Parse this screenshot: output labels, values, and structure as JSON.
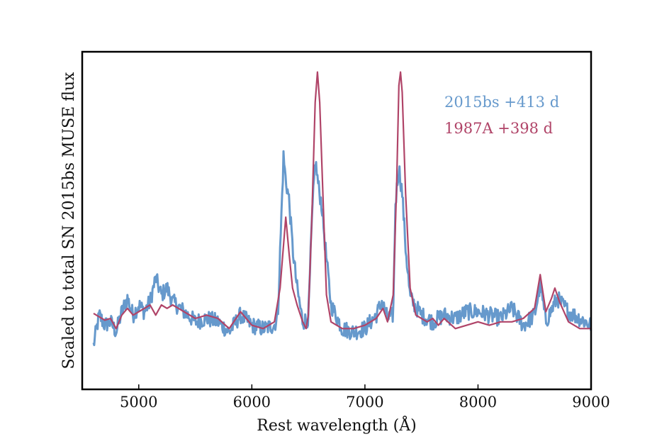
{
  "chart_data": {
    "type": "line",
    "xlabel": "Rest wavelength (Å)",
    "ylabel": "Scaled to total SN 2015bs MUSE flux",
    "xlim": [
      4500,
      9000
    ],
    "ylim": [
      0,
      1.0
    ],
    "x_ticks": [
      5000,
      6000,
      7000,
      8000,
      9000
    ],
    "y_ticks_shown": false,
    "grid": false,
    "legend": "top-right",
    "series": [
      {
        "name": "2015bs +413 d",
        "color": "#6699cc",
        "points": [
          [
            4600,
            0.13
          ],
          [
            4650,
            0.22
          ],
          [
            4700,
            0.19
          ],
          [
            4750,
            0.2
          ],
          [
            4800,
            0.17
          ],
          [
            4850,
            0.23
          ],
          [
            4900,
            0.27
          ],
          [
            4950,
            0.22
          ],
          [
            5000,
            0.25
          ],
          [
            5050,
            0.23
          ],
          [
            5100,
            0.26
          ],
          [
            5150,
            0.33
          ],
          [
            5200,
            0.28
          ],
          [
            5250,
            0.3
          ],
          [
            5300,
            0.26
          ],
          [
            5400,
            0.23
          ],
          [
            5500,
            0.2
          ],
          [
            5600,
            0.21
          ],
          [
            5700,
            0.2
          ],
          [
            5800,
            0.17
          ],
          [
            5900,
            0.22
          ],
          [
            6000,
            0.19
          ],
          [
            6100,
            0.18
          ],
          [
            6200,
            0.19
          ],
          [
            6230,
            0.22
          ],
          [
            6260,
            0.5
          ],
          [
            6280,
            0.69
          ],
          [
            6300,
            0.62
          ],
          [
            6330,
            0.56
          ],
          [
            6360,
            0.42
          ],
          [
            6400,
            0.3
          ],
          [
            6450,
            0.2
          ],
          [
            6500,
            0.21
          ],
          [
            6530,
            0.49
          ],
          [
            6560,
            0.68
          ],
          [
            6590,
            0.6
          ],
          [
            6620,
            0.54
          ],
          [
            6650,
            0.42
          ],
          [
            6700,
            0.25
          ],
          [
            6800,
            0.18
          ],
          [
            6900,
            0.17
          ],
          [
            7000,
            0.18
          ],
          [
            7100,
            0.22
          ],
          [
            7150,
            0.26
          ],
          [
            7200,
            0.21
          ],
          [
            7250,
            0.22
          ],
          [
            7270,
            0.55
          ],
          [
            7300,
            0.66
          ],
          [
            7330,
            0.58
          ],
          [
            7360,
            0.42
          ],
          [
            7400,
            0.27
          ],
          [
            7500,
            0.22
          ],
          [
            7600,
            0.2
          ],
          [
            7700,
            0.22
          ],
          [
            7800,
            0.21
          ],
          [
            7900,
            0.23
          ],
          [
            8000,
            0.23
          ],
          [
            8100,
            0.22
          ],
          [
            8200,
            0.21
          ],
          [
            8300,
            0.24
          ],
          [
            8400,
            0.19
          ],
          [
            8500,
            0.22
          ],
          [
            8550,
            0.31
          ],
          [
            8600,
            0.2
          ],
          [
            8700,
            0.27
          ],
          [
            8800,
            0.23
          ],
          [
            8900,
            0.21
          ],
          [
            9000,
            0.19
          ]
        ],
        "noise": 0.025
      },
      {
        "name": "1987A +398 d",
        "color": "#b04468",
        "points": [
          [
            4600,
            0.225
          ],
          [
            4650,
            0.215
          ],
          [
            4700,
            0.205
          ],
          [
            4750,
            0.21
          ],
          [
            4800,
            0.18
          ],
          [
            4850,
            0.22
          ],
          [
            4900,
            0.24
          ],
          [
            4950,
            0.22
          ],
          [
            5000,
            0.23
          ],
          [
            5050,
            0.24
          ],
          [
            5100,
            0.25
          ],
          [
            5150,
            0.22
          ],
          [
            5200,
            0.25
          ],
          [
            5250,
            0.24
          ],
          [
            5300,
            0.25
          ],
          [
            5400,
            0.23
          ],
          [
            5500,
            0.21
          ],
          [
            5600,
            0.22
          ],
          [
            5700,
            0.21
          ],
          [
            5800,
            0.18
          ],
          [
            5900,
            0.23
          ],
          [
            6000,
            0.19
          ],
          [
            6100,
            0.18
          ],
          [
            6200,
            0.2
          ],
          [
            6250,
            0.3
          ],
          [
            6300,
            0.51
          ],
          [
            6330,
            0.4
          ],
          [
            6360,
            0.3
          ],
          [
            6400,
            0.25
          ],
          [
            6450,
            0.2
          ],
          [
            6480,
            0.18
          ],
          [
            6500,
            0.22
          ],
          [
            6530,
            0.5
          ],
          [
            6560,
            0.85
          ],
          [
            6580,
            0.94
          ],
          [
            6600,
            0.85
          ],
          [
            6630,
            0.56
          ],
          [
            6660,
            0.28
          ],
          [
            6700,
            0.2
          ],
          [
            6800,
            0.18
          ],
          [
            6900,
            0.18
          ],
          [
            7000,
            0.19
          ],
          [
            7100,
            0.21
          ],
          [
            7160,
            0.24
          ],
          [
            7200,
            0.2
          ],
          [
            7250,
            0.28
          ],
          [
            7280,
            0.6
          ],
          [
            7300,
            0.9
          ],
          [
            7315,
            0.94
          ],
          [
            7330,
            0.88
          ],
          [
            7360,
            0.58
          ],
          [
            7400,
            0.3
          ],
          [
            7450,
            0.22
          ],
          [
            7500,
            0.21
          ],
          [
            7550,
            0.2
          ],
          [
            7600,
            0.21
          ],
          [
            7650,
            0.19
          ],
          [
            7700,
            0.21
          ],
          [
            7800,
            0.18
          ],
          [
            7900,
            0.19
          ],
          [
            8000,
            0.2
          ],
          [
            8100,
            0.19
          ],
          [
            8200,
            0.2
          ],
          [
            8300,
            0.2
          ],
          [
            8400,
            0.21
          ],
          [
            8500,
            0.24
          ],
          [
            8550,
            0.34
          ],
          [
            8600,
            0.23
          ],
          [
            8650,
            0.27
          ],
          [
            8680,
            0.3
          ],
          [
            8720,
            0.26
          ],
          [
            8800,
            0.2
          ],
          [
            8900,
            0.18
          ],
          [
            9000,
            0.18
          ]
        ]
      }
    ]
  }
}
